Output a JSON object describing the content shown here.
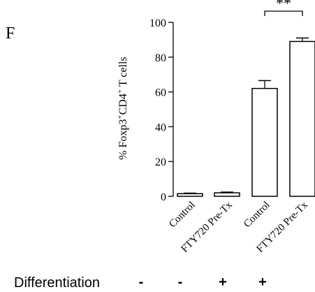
{
  "panel_label": "F",
  "chart_data": {
    "type": "bar",
    "ylabel": "% Foxp3",
    "ylabel_sup1": "+",
    "ylabel_mid": "CD4",
    "ylabel_sup2": "+",
    "ylabel_end": " T cells",
    "ylim": [
      0,
      100
    ],
    "yticks": [
      "0",
      "20",
      "40",
      "60",
      "80",
      "100"
    ],
    "categories": [
      "Control",
      "FTY720 Pre-Tx",
      "Control",
      "FTY720 Pre-Tx"
    ],
    "values": [
      1.5,
      2.0,
      62,
      89
    ],
    "errors": [
      0.3,
      0.4,
      4.5,
      2.0
    ],
    "bar_fill": "#ffffff",
    "bar_stroke": "#000000",
    "significance": {
      "between": [
        2,
        3
      ],
      "label": "**"
    },
    "grid": false
  },
  "differentiation": {
    "label": "Differentiation",
    "signs": [
      "-",
      "-",
      "+",
      "+"
    ]
  }
}
